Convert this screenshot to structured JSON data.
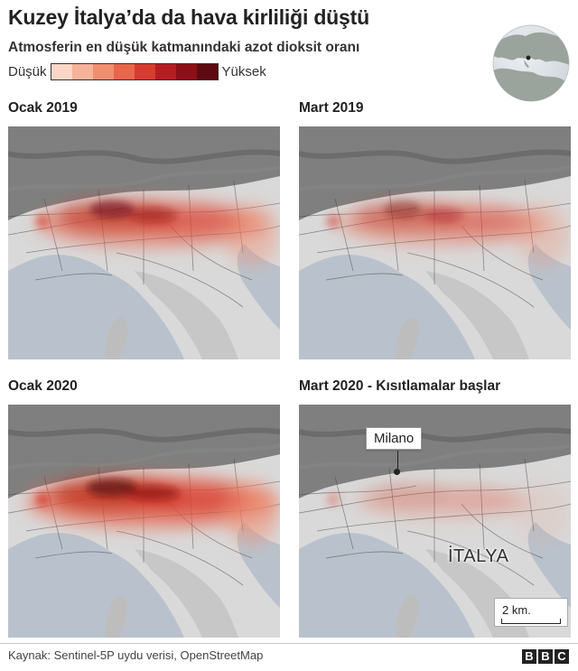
{
  "header": {
    "title": "Kuzey İtalya’da da hava kirliliği düştü",
    "subtitle": "Atmosferin en düşük katmanındaki azot dioksit oranı"
  },
  "legend": {
    "low_label": "Düşük",
    "high_label": "Yüksek",
    "colors": [
      "#fdf1ec",
      "#fbd6c6",
      "#f6b39b",
      "#f28e70",
      "#e9654b",
      "#d63c2f",
      "#b51d22",
      "#8d0f17",
      "#5d0a10"
    ]
  },
  "panels": [
    {
      "label": "Ocak 2019",
      "intensity": 0.8
    },
    {
      "label": "Mart 2019",
      "intensity": 0.6
    },
    {
      "label": "Ocak 2020",
      "intensity": 1.0
    },
    {
      "label": "Mart 2020 - Kısıtlamalar başlar",
      "intensity": 0.25
    }
  ],
  "annotations": {
    "city_label": "Milano",
    "country_label": "İTALYA",
    "scale_label": "2 km."
  },
  "footer": {
    "source": "Kaynak: Sentinel-5P uydu verisi, OpenStreetMap",
    "logo_letters": [
      "B",
      "B",
      "C"
    ]
  },
  "colors": {
    "sea": "#b9c2cc",
    "land": "#d9d9d9",
    "mountain": "#6f6f6f",
    "pollution": "#c0321f"
  }
}
